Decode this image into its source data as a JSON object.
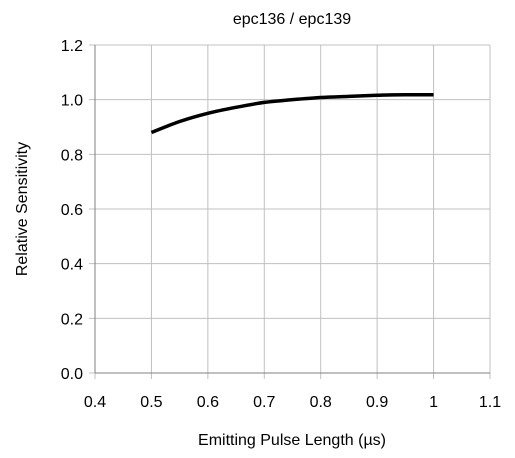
{
  "chart_data": {
    "type": "line",
    "title": "epc136 / epc139",
    "xlabel": "Emitting Pulse Length (µs)",
    "ylabel": "Relative Sensitivity",
    "xlim": [
      0.4,
      1.1
    ],
    "ylim": [
      0.0,
      1.2
    ],
    "x_ticks": [
      0.4,
      0.5,
      0.6,
      0.7,
      0.8,
      0.9,
      1.0,
      1.1
    ],
    "x_tick_labels": [
      "0.4",
      "0.5",
      "0.6",
      "0.7",
      "0.8",
      "0.9",
      "1",
      "1.1"
    ],
    "y_ticks": [
      0.0,
      0.2,
      0.4,
      0.6,
      0.8,
      1.0,
      1.2
    ],
    "y_tick_labels": [
      "0.0",
      "0.2",
      "0.4",
      "0.6",
      "0.8",
      "1.0",
      "1.2"
    ],
    "grid": true,
    "legend": "none",
    "series": [
      {
        "color": "#000000",
        "x": [
          0.5,
          0.55,
          0.6,
          0.65,
          0.7,
          0.75,
          0.8,
          0.85,
          0.9,
          0.95,
          1.0
        ],
        "values": [
          0.88,
          0.92,
          0.95,
          0.972,
          0.99,
          1.0,
          1.008,
          1.012,
          1.016,
          1.018,
          1.018
        ]
      }
    ],
    "colors": {
      "grid": "#c0c0c0",
      "axis": "#808080"
    }
  }
}
